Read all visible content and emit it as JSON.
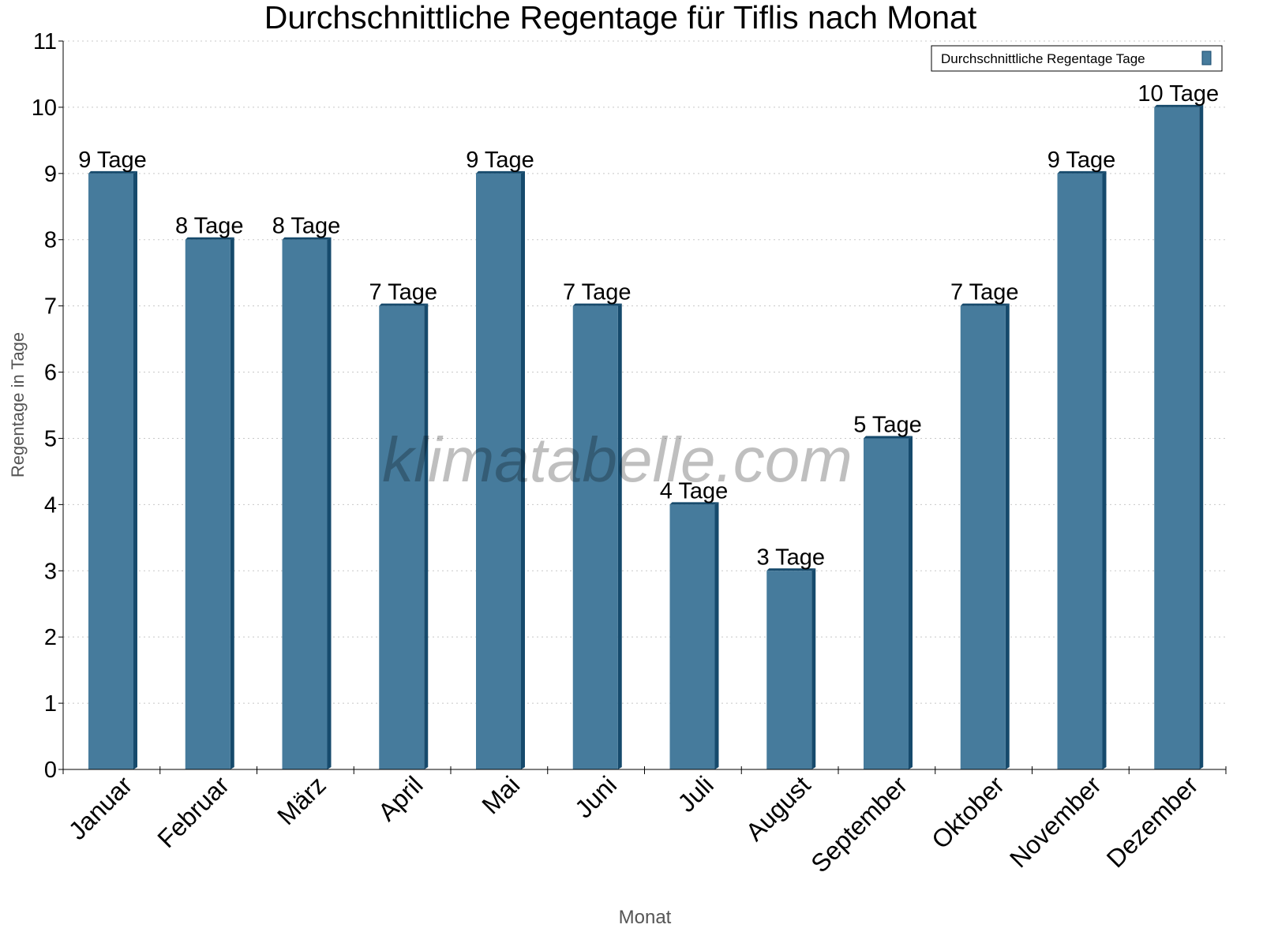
{
  "chart_data": {
    "type": "bar",
    "title": "Durchschnittliche Regentage für Tiflis nach Monat",
    "xlabel": "Monat",
    "ylabel": "Regentage in Tage",
    "ylim": [
      0,
      11
    ],
    "yticks": [
      "0",
      "1",
      "2",
      "3",
      "4",
      "5",
      "6",
      "7",
      "8",
      "9",
      "10",
      "11"
    ],
    "grid": true,
    "legend_position": "top-right",
    "categories": [
      "Januar",
      "Februar",
      "März",
      "April",
      "Mai",
      "Juni",
      "Juli",
      "August",
      "September",
      "Oktober",
      "November",
      "Dezember"
    ],
    "series": [
      {
        "name": "Durchschnittliche Regentage Tage",
        "values": [
          9,
          8,
          8,
          7,
          9,
          7,
          4,
          3,
          5,
          7,
          9,
          10
        ],
        "data_labels": [
          "9 Tage",
          "8 Tage",
          "8 Tage",
          "7 Tage",
          "9 Tage",
          "7 Tage",
          "4 Tage",
          "3 Tage",
          "5 Tage",
          "7 Tage",
          "9 Tage",
          "10 Tage"
        ]
      }
    ],
    "colors": {
      "bar": "#467b9c",
      "bar_side": "#164a6c",
      "grid": "#c8c8c8"
    }
  },
  "watermark": "klimatabelle.com"
}
